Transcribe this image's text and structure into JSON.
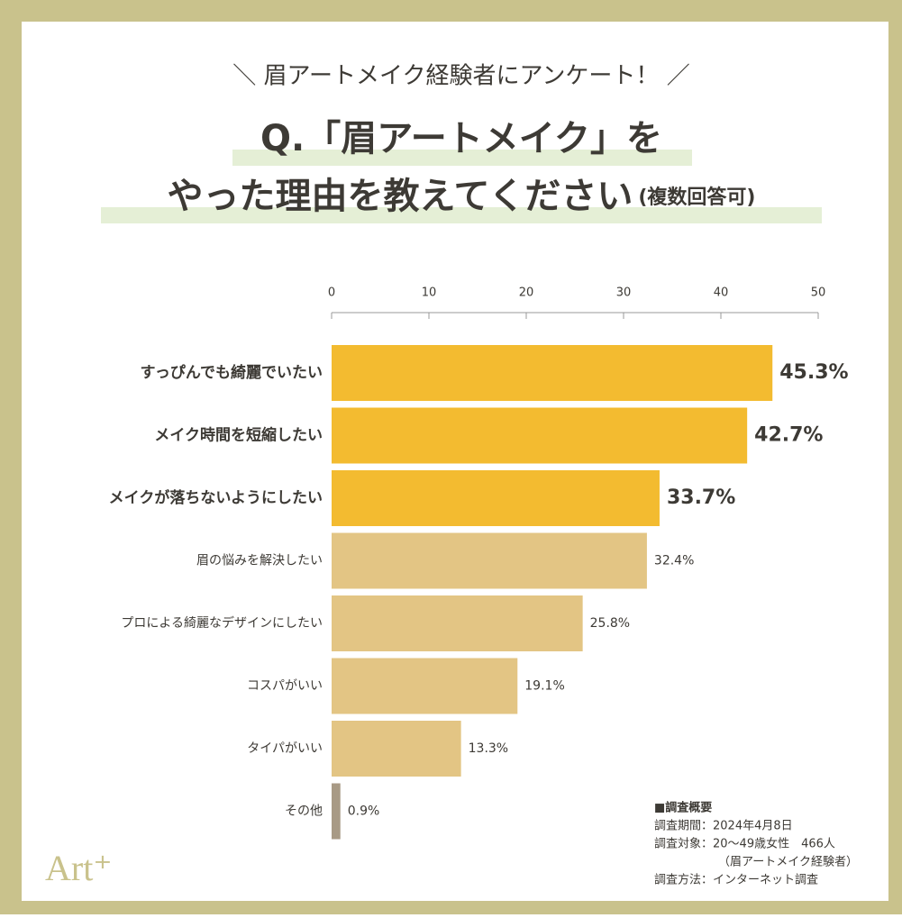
{
  "chart_data": {
    "type": "bar",
    "subtitle": "＼ 眉アートメイク経験者にアンケート！ ／",
    "title": [
      "Q.「眉アートメイク」を",
      "やった理由を教えてください"
    ],
    "title_note": "(複数回答可)",
    "categories": [
      "すっぴんでも綺麗でいたい",
      "メイク時間を短縮したい",
      "メイクが落ちないようにしたい",
      "眉の悩みを解決したい",
      "プロによる綺麗なデザインにしたい",
      "コスパがいい",
      "タイパがいい",
      "その他"
    ],
    "values": [
      45.3,
      42.7,
      33.7,
      32.4,
      25.8,
      19.1,
      13.3,
      0.9
    ],
    "value_labels": [
      "45.3%",
      "42.7%",
      "33.7%",
      "32.4%",
      "25.8%",
      "19.1%",
      "13.3%",
      "0.9%"
    ],
    "colors": [
      "#f3bb30",
      "#f3bb30",
      "#f3bb30",
      "#e3c584",
      "#e3c584",
      "#e3c584",
      "#e3c584",
      "#a89a85"
    ],
    "xlim": [
      0,
      50
    ],
    "xticks": [
      0,
      10,
      20,
      30,
      40,
      50
    ],
    "notes": [
      "■調査概要",
      "調査期間：2024年4月8日",
      "調査対象：20～49歳女性　466人",
      "（眉アートメイク経験者）",
      "調査方法：インターネット調査"
    ],
    "logo": "Art⁺"
  }
}
